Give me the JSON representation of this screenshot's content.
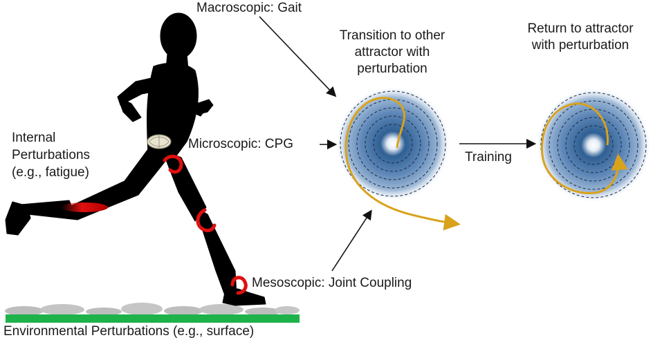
{
  "labels": {
    "macroscopic": "Macroscopic: Gait",
    "microscopic": "Microscopic: CPG",
    "mesoscopic": "Mesoscopic: Joint Coupling",
    "internal_line1": "Internal",
    "internal_line2": "Perturbations",
    "internal_line3": "(e.g., fatigue)",
    "environmental": "Environmental Perturbations (e.g., surface)",
    "transition_line1": "Transition to other",
    "transition_line2": "attractor with",
    "transition_line3": "perturbation",
    "return_line1": "Return to attractor",
    "return_line2": "with perturbation",
    "training": "Training"
  },
  "colors": {
    "silhouette": "#000000",
    "ground": "#1db34a",
    "surface_bumps": "#bdbdbd",
    "perturbation_red": "#e01010",
    "trajectory": "#d9a21b",
    "attractor_core": "#2b5a8c",
    "attractor_halo": "#c9d8ea",
    "arrow": "#111111"
  },
  "icons": {
    "runner": "running-person-silhouette",
    "cpg": "spinal-cord-cross-section-icon",
    "joint_coupling": "joint-arc-icon",
    "attractor": "attractor-basin-icon"
  }
}
